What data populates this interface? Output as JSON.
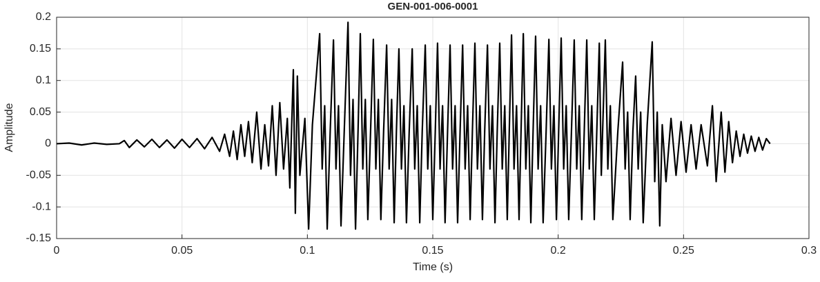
{
  "chart_data": {
    "type": "line",
    "title": "GEN-001-006-0001",
    "x_label": "Time (s)",
    "y_label": "Amplitude",
    "x": [
      0,
      0.005,
      0.01,
      0.015,
      0.02,
      0.025,
      0.027,
      0.029,
      0.032,
      0.035,
      0.038,
      0.041,
      0.044,
      0.047,
      0.05,
      0.053,
      0.056,
      0.059,
      0.062,
      0.065,
      0.067,
      0.069,
      0.0705,
      0.072,
      0.0735,
      0.075,
      0.0765,
      0.078,
      0.0798,
      0.0815,
      0.083,
      0.0845,
      0.086,
      0.0875,
      0.089,
      0.0905,
      0.092,
      0.093,
      0.0944,
      0.0952,
      0.096,
      0.097,
      0.099,
      0.1005,
      0.102,
      0.1049,
      0.1059,
      0.1069,
      0.1079,
      0.1091,
      0.1104,
      0.1114,
      0.1124,
      0.1134,
      0.1147,
      0.1162,
      0.1172,
      0.1182,
      0.1192,
      0.1202,
      0.1211,
      0.1221,
      0.1231,
      0.1241,
      0.1252,
      0.1263,
      0.1273,
      0.1283,
      0.1293,
      0.1304,
      0.1316,
      0.1326,
      0.1336,
      0.1346,
      0.1355,
      0.1365,
      0.1375,
      0.1385,
      0.1395,
      0.1406,
      0.1418,
      0.1428,
      0.1438,
      0.1448,
      0.1458,
      0.147,
      0.148,
      0.149,
      0.15,
      0.151,
      0.1519,
      0.1529,
      0.1539,
      0.1549,
      0.1559,
      0.1569,
      0.1579,
      0.1589,
      0.1599,
      0.1609,
      0.1619,
      0.1629,
      0.1639,
      0.1649,
      0.1658,
      0.1668,
      0.1678,
      0.1688,
      0.1698,
      0.1707,
      0.1718,
      0.1728,
      0.1738,
      0.1748,
      0.1757,
      0.1767,
      0.1777,
      0.1787,
      0.1797,
      0.1805,
      0.1814,
      0.1824,
      0.1834,
      0.1844,
      0.1852,
      0.1861,
      0.1871,
      0.1881,
      0.1891,
      0.19,
      0.191,
      0.192,
      0.193,
      0.194,
      0.1952,
      0.1963,
      0.1973,
      0.1983,
      0.1993,
      0.2002,
      0.2012,
      0.2022,
      0.2032,
      0.2042,
      0.2053,
      0.2064,
      0.2074,
      0.2084,
      0.2094,
      0.2104,
      0.2114,
      0.2124,
      0.2134,
      0.2144,
      0.2154,
      0.2164,
      0.2172,
      0.2188,
      0.2198,
      0.2208,
      0.2218,
      0.2238,
      0.2257,
      0.2267,
      0.2277,
      0.2287,
      0.2298,
      0.2309,
      0.2319,
      0.2329,
      0.2339,
      0.2355,
      0.2375,
      0.2385,
      0.2395,
      0.2405,
      0.2415,
      0.243,
      0.245,
      0.247,
      0.249,
      0.251,
      0.253,
      0.255,
      0.257,
      0.2595,
      0.2615,
      0.263,
      0.265,
      0.2665,
      0.268,
      0.2695,
      0.271,
      0.2725,
      0.274,
      0.2755,
      0.277,
      0.2785,
      0.28,
      0.2815,
      0.283,
      0.2845
    ],
    "series": [
      {
        "color": "#000000",
        "values": [
          0,
          0.001,
          -0.002,
          0.001,
          -0.001,
          0,
          0.005,
          -0.006,
          0.006,
          -0.005,
          0.007,
          -0.006,
          0.006,
          -0.007,
          0.007,
          -0.006,
          0.008,
          -0.008,
          0.01,
          -0.012,
          0.015,
          -0.02,
          0.02,
          -0.025,
          0.03,
          -0.02,
          0.035,
          -0.03,
          0.05,
          -0.04,
          0.03,
          -0.035,
          0.06,
          -0.05,
          0.065,
          -0.04,
          0.04,
          -0.07,
          0.117,
          -0.11,
          0.107,
          -0.05,
          0.04,
          -0.135,
          0.03,
          0.174,
          -0.04,
          0.06,
          -0.135,
          0.02,
          0.164,
          -0.04,
          0.06,
          -0.13,
          0.02,
          0.192,
          -0.05,
          0.07,
          -0.135,
          0.02,
          0.174,
          -0.04,
          0.07,
          -0.12,
          0.02,
          0.165,
          -0.04,
          0.07,
          -0.12,
          0.02,
          0.156,
          -0.04,
          0.07,
          -0.125,
          0.02,
          0.15,
          -0.04,
          0.06,
          -0.125,
          0.02,
          0.15,
          -0.04,
          0.06,
          -0.125,
          0.02,
          0.156,
          -0.04,
          0.06,
          -0.12,
          0.02,
          0.159,
          -0.04,
          0.06,
          -0.125,
          0.02,
          0.156,
          -0.04,
          0.06,
          -0.125,
          0.02,
          0.156,
          -0.04,
          0.06,
          -0.12,
          0.02,
          0.159,
          -0.04,
          0.06,
          -0.12,
          0.02,
          0.156,
          -0.04,
          0.06,
          -0.125,
          0.02,
          0.159,
          -0.04,
          0.06,
          -0.12,
          0.02,
          0.172,
          -0.04,
          0.06,
          -0.12,
          0.02,
          0.174,
          -0.04,
          0.06,
          -0.125,
          0.02,
          0.17,
          -0.04,
          0.06,
          -0.125,
          0.02,
          0.165,
          -0.04,
          0.06,
          -0.12,
          0.02,
          0.167,
          -0.04,
          0.06,
          -0.12,
          0.02,
          0.164,
          -0.04,
          0.06,
          -0.12,
          0.02,
          0.164,
          -0.04,
          0.06,
          -0.12,
          0.02,
          0.159,
          -0.05,
          0.164,
          -0.04,
          0.06,
          -0.12,
          0.02,
          0.129,
          -0.04,
          0.05,
          -0.12,
          0.02,
          0.107,
          -0.04,
          0.05,
          -0.125,
          0.03,
          0.161,
          -0.06,
          0.05,
          -0.13,
          0.03,
          -0.06,
          0.04,
          -0.05,
          0.035,
          -0.045,
          0.03,
          -0.04,
          0.03,
          -0.035,
          0.06,
          -0.06,
          0.05,
          -0.045,
          0.035,
          -0.03,
          0.02,
          -0.02,
          0.015,
          -0.015,
          0.012,
          -0.012,
          0.01,
          -0.01,
          0.008,
          0
        ]
      }
    ],
    "xlim": [
      0,
      0.3
    ],
    "xticks": [
      0,
      0.05,
      0.1,
      0.15,
      0.2,
      0.25,
      0.3
    ],
    "ylim": [
      -0.15,
      0.2
    ],
    "yticks": [
      -0.15,
      -0.1,
      -0.05,
      0,
      0.05,
      0.1,
      0.15,
      0.2
    ],
    "grid": true
  }
}
